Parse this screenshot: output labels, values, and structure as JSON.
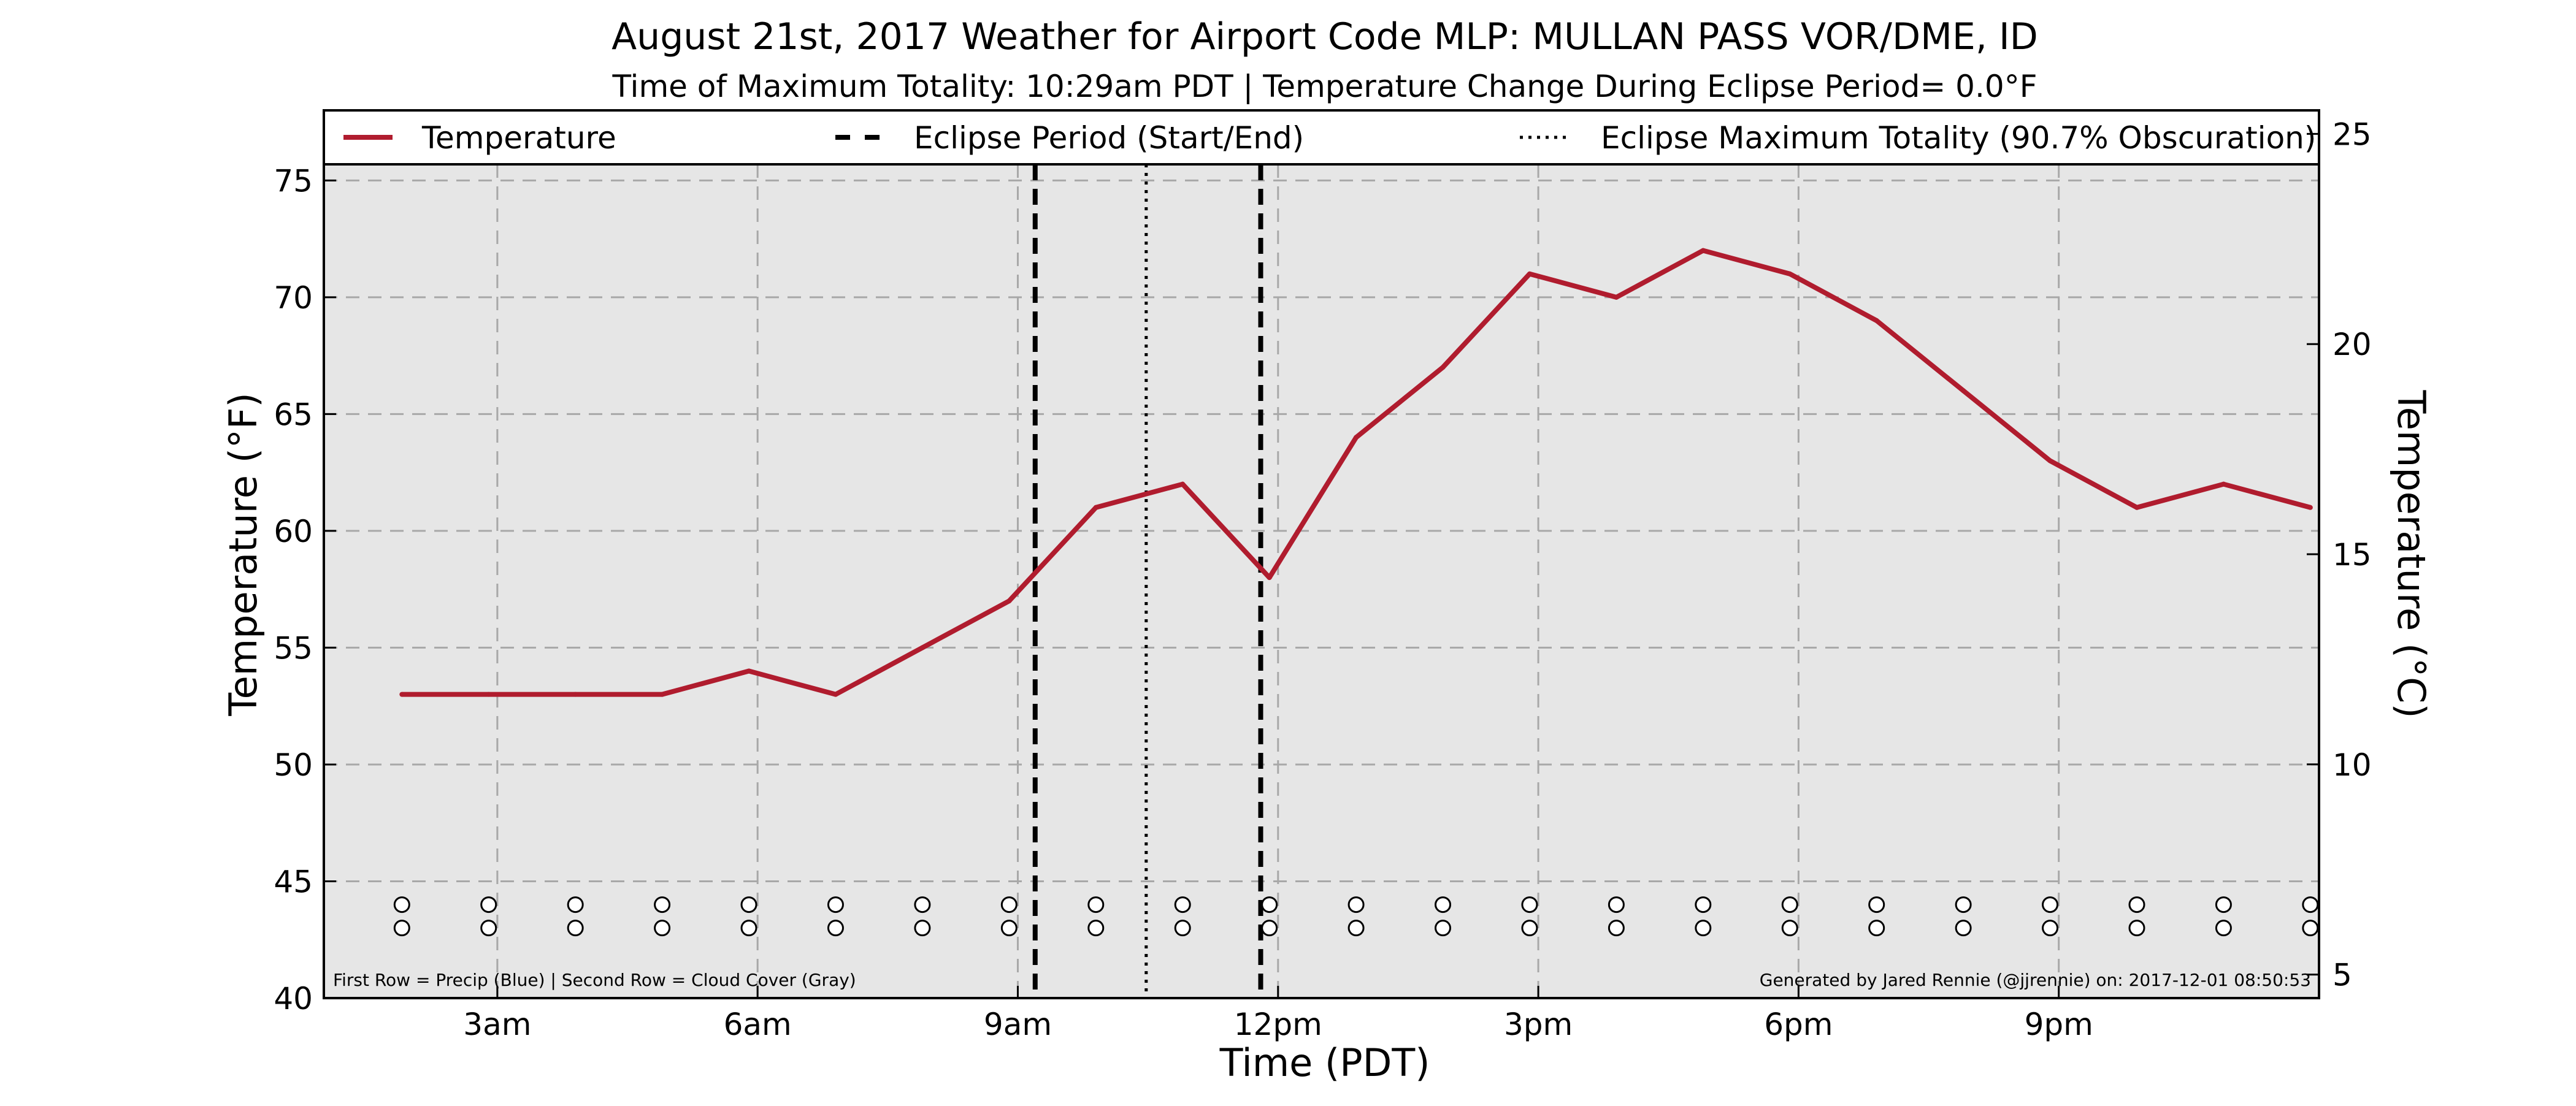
{
  "chart_data": {
    "type": "line",
    "title": "August 21st, 2017 Weather for Airport Code MLP: MULLAN PASS VOR/DME, ID",
    "subtitle": "Time of Maximum Totality: 10:29am PDT | Temperature Change During Eclipse Period= 0.0$^\\circ$F",
    "subtitle_display": "Time of Maximum Totality: 10:29am PDT | Temperature Change During Eclipse Period= 0.0°F",
    "xlabel": "Time (PDT)",
    "ylabel": "Temperature ($^\\circ$F)",
    "ylabel_display": "Temperature (°F)",
    "ylabel_right_display": "Temperature (°C)",
    "xlim": [
      1,
      24
    ],
    "ylim": [
      40,
      78
    ],
    "ylim_right": [
      4.44,
      25.56
    ],
    "xticks": [
      {
        "x": 3,
        "label": "3am"
      },
      {
        "x": 6,
        "label": "6am"
      },
      {
        "x": 9,
        "label": "9am"
      },
      {
        "x": 12,
        "label": "12pm"
      },
      {
        "x": 15,
        "label": "3pm"
      },
      {
        "x": 18,
        "label": "6pm"
      },
      {
        "x": 21,
        "label": "9pm"
      }
    ],
    "yticks": [
      40,
      45,
      50,
      55,
      60,
      65,
      70,
      75
    ],
    "yticks_right": [
      5,
      10,
      15,
      20,
      25
    ],
    "grid": true,
    "legend_position": "top",
    "legend": [
      {
        "label": "Temperature",
        "style": "solid",
        "color": "#b01c2e"
      },
      {
        "label": "Eclipse Period (Start/End)",
        "style": "dashed",
        "color": "#000000"
      },
      {
        "label": "Eclipse Maximum Totality (90.7% Obscuration)",
        "style": "dotted",
        "color": "#000000"
      }
    ],
    "series": [
      {
        "name": "Temperature",
        "color": "#b01c2e",
        "x": [
          1.9,
          2.9,
          3.9,
          4.9,
          5.9,
          6.9,
          7.9,
          8.9,
          9.9,
          10.9,
          11.9,
          12.9,
          13.9,
          14.9,
          15.9,
          16.9,
          17.9,
          18.9,
          19.9,
          20.9,
          21.9,
          22.9,
          23.9
        ],
        "values": [
          53,
          53,
          53,
          53,
          54,
          53,
          55,
          57,
          61,
          62,
          58,
          64,
          67,
          71,
          70,
          72,
          71,
          69,
          66,
          63,
          61,
          62,
          61
        ]
      }
    ],
    "eclipse_start_x": 9.2,
    "eclipse_end_x": 11.8,
    "eclipse_max_x": 10.48,
    "marker_rows": {
      "x": [
        1.9,
        2.9,
        3.9,
        4.9,
        5.9,
        6.9,
        7.9,
        8.9,
        9.9,
        10.9,
        11.9,
        12.9,
        13.9,
        14.9,
        15.9,
        16.9,
        17.9,
        18.9,
        19.9,
        20.9,
        21.9,
        22.9,
        23.9
      ],
      "row_y": [
        44,
        43
      ]
    },
    "footnote_left": "First Row = Precip (Blue) | Second Row = Cloud Cover (Gray)",
    "footnote_right": "Generated by Jared Rennie (@jjrennie) on: 2017-12-01 08:50:53",
    "colors": {
      "plot_background": "#e6e6e6",
      "grid": "#a8a8a8",
      "temperature": "#b01c2e"
    }
  }
}
